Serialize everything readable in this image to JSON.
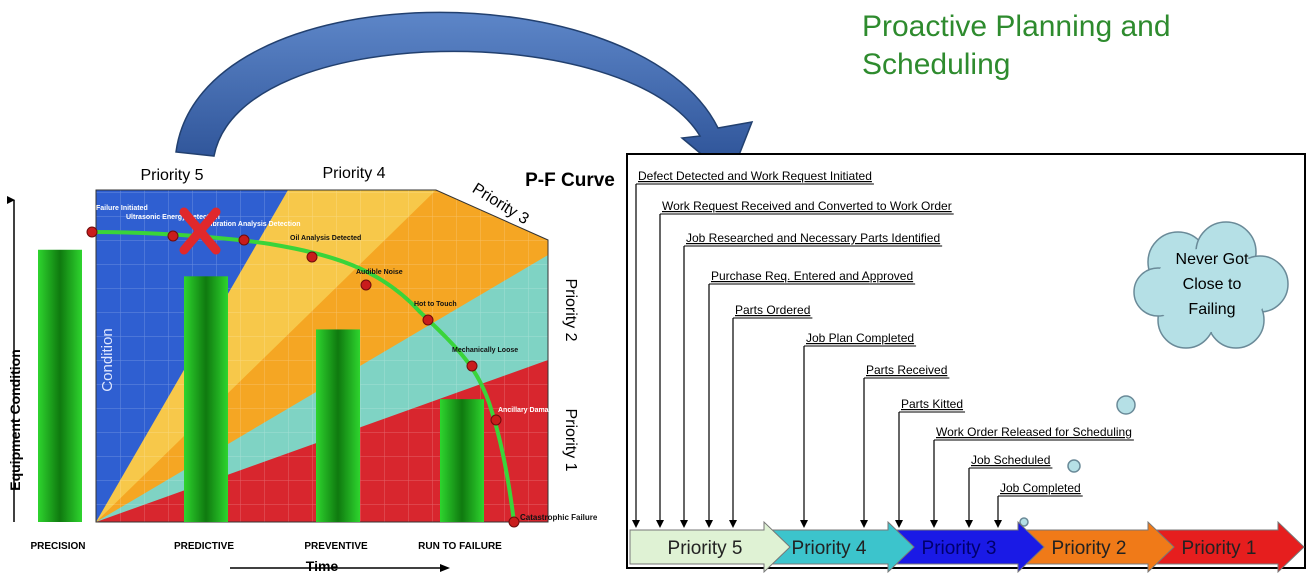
{
  "title": {
    "line1": "Proactive Planning and",
    "line2": "Scheduling"
  },
  "pf_chart": {
    "heading": "P-F Curve",
    "y_axis_label": "Equipment Condition",
    "x_axis_label": "Time",
    "condition_label": "Condition",
    "priority_labels": [
      "Priority 5",
      "Priority 4",
      "Priority 3",
      "Priority 2",
      "Priority 1"
    ],
    "curve_points": [
      "Failure Initiated",
      "Ultrasonic Energy Detection",
      "Vibration Analysis Detection",
      "Oil Analysis Detected",
      "Audible Noise",
      "Hot to Touch",
      "Mechanically Loose",
      "Ancillary Damage",
      "Catastrophic Failure"
    ],
    "strategy_labels": [
      "PRECISION",
      "PREDICTIVE",
      "PREVENTIVE",
      "RUN TO FAILURE"
    ],
    "strategy_levels": [
      0.82,
      0.74,
      0.58,
      0.37
    ],
    "colors": {
      "priority5": "#2f5fd1",
      "priority4": "#f5a623",
      "priority3": "#7fd3c4",
      "priority1": "#d8262e",
      "bars": "#2ecc2e",
      "curve": "#3ad43a"
    }
  },
  "work_flow": {
    "steps": [
      "Defect Detected and Work Request Initiated",
      "Work Request Received and Converted to Work Order",
      "Job Researched and Necessary Parts Identified",
      "Purchase Req. Entered and Approved",
      "Parts Ordered",
      "Job Plan Completed",
      "Parts Received",
      "Parts Kitted",
      "Work Order Released for Scheduling",
      "Job Scheduled",
      "Job Completed"
    ],
    "cloud_text": [
      "Never Got",
      "Close to",
      "Failing"
    ],
    "arrows": [
      {
        "label": "Priority 5",
        "color": "#dff2d4"
      },
      {
        "label": "Priority 4",
        "color": "#3cc4cc"
      },
      {
        "label": "Priority 3",
        "color": "#1a1ae6"
      },
      {
        "label": "Priority 2",
        "color": "#f07a18"
      },
      {
        "label": "Priority 1",
        "color": "#e61e1e"
      }
    ]
  }
}
